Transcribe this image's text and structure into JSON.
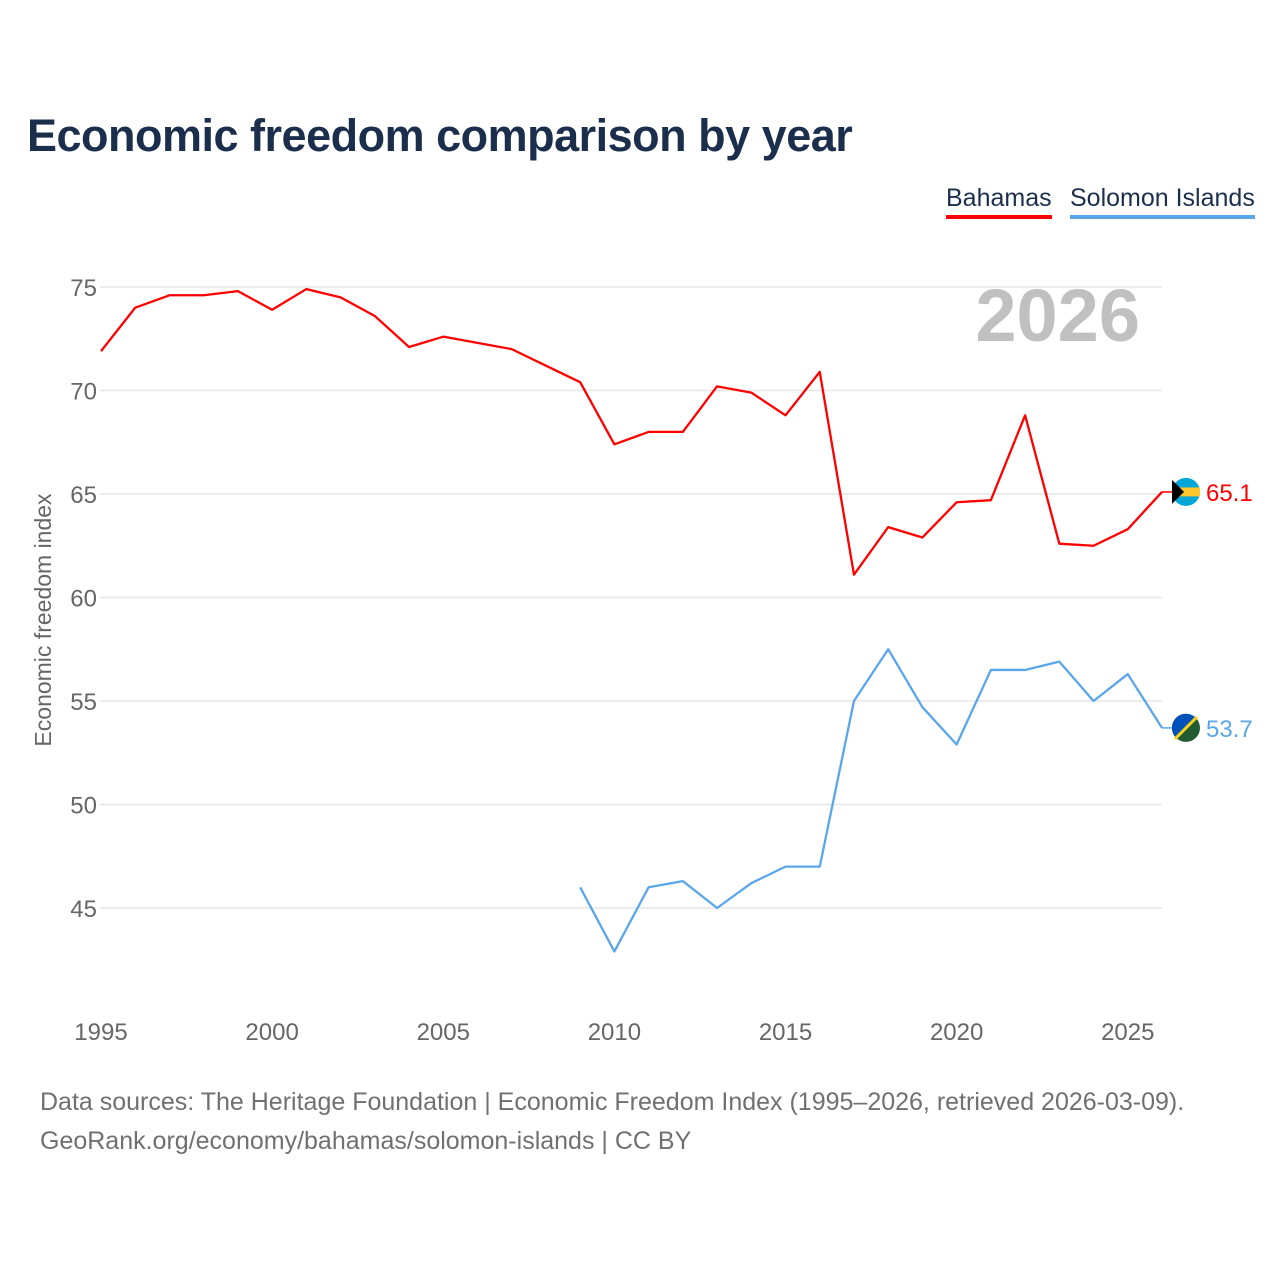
{
  "chart_data": {
    "type": "line",
    "title": "Economic freedom comparison by year",
    "xlabel": "",
    "ylabel": "Economic freedom index",
    "xlim": [
      1995,
      2026
    ],
    "ylim": [
      41.5,
      75
    ],
    "yticks": [
      45,
      50,
      55,
      60,
      65,
      70,
      75
    ],
    "xticks": [
      1995,
      2000,
      2005,
      2010,
      2015,
      2020,
      2025
    ],
    "grid": true,
    "legend_placement": "top-right",
    "year_label": "2026",
    "series": [
      {
        "name": "Bahamas",
        "color": "#ff0000",
        "end_label": "65.1",
        "x": [
          1995,
          1996,
          1997,
          1998,
          1999,
          2000,
          2001,
          2002,
          2003,
          2004,
          2005,
          2006,
          2007,
          2008,
          2009,
          2010,
          2011,
          2012,
          2013,
          2014,
          2015,
          2016,
          2017,
          2018,
          2019,
          2020,
          2021,
          2022,
          2023,
          2024,
          2025,
          2026
        ],
        "values": [
          71.9,
          74.0,
          74.6,
          74.6,
          74.8,
          73.9,
          74.9,
          74.5,
          73.6,
          72.1,
          72.6,
          72.3,
          72.0,
          71.2,
          70.4,
          67.4,
          68.0,
          68.0,
          70.2,
          69.9,
          68.8,
          70.9,
          61.1,
          63.4,
          62.9,
          64.6,
          64.7,
          68.8,
          62.6,
          62.5,
          63.3,
          65.1
        ]
      },
      {
        "name": "Solomon Islands",
        "color": "#5aa6ea",
        "end_label": "53.7",
        "x": [
          2009,
          2010,
          2011,
          2012,
          2013,
          2014,
          2015,
          2016,
          2017,
          2018,
          2019,
          2020,
          2021,
          2022,
          2023,
          2024,
          2025,
          2026
        ],
        "values": [
          46.0,
          42.9,
          46.0,
          46.3,
          45.0,
          46.2,
          47.0,
          47.0,
          55.0,
          57.5,
          54.7,
          52.9,
          56.5,
          56.5,
          56.9,
          55.0,
          56.3,
          53.7
        ]
      }
    ]
  },
  "legend": {
    "bahamas": "Bahamas",
    "solomon": "Solomon Islands"
  },
  "footer": {
    "line1": "Data sources: The Heritage Foundation | Economic Freedom Index (1995–2026, retrieved 2026-03-09).",
    "line2": "GeoRank.org/economy/bahamas/solomon-islands | CC BY"
  }
}
